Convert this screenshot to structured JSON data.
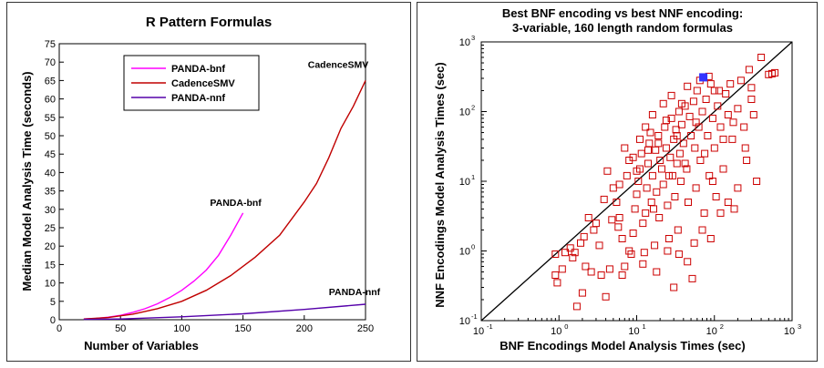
{
  "chart_data": [
    {
      "type": "line",
      "title": "R Pattern Formulas",
      "xlabel": "Number of Variables",
      "ylabel": "Median Model Analysis Time (seconds)",
      "xlim": [
        0,
        250
      ],
      "ylim": [
        0,
        75
      ],
      "xticks": [
        0,
        50,
        100,
        150,
        200,
        250
      ],
      "yticks": [
        0,
        5,
        10,
        15,
        20,
        25,
        30,
        35,
        40,
        45,
        50,
        55,
        60,
        65,
        70,
        75
      ],
      "legend_position": "top-left",
      "series": [
        {
          "name": "PANDA-bnf",
          "color": "#ff00ff",
          "label": "PANDA-bnf",
          "x": [
            20,
            30,
            40,
            50,
            60,
            70,
            80,
            90,
            100,
            110,
            120,
            130,
            140,
            150
          ],
          "y": [
            0.2,
            0.35,
            0.7,
            1.2,
            2.0,
            3.0,
            4.3,
            6.0,
            8.0,
            10.5,
            13.5,
            17.5,
            23.0,
            29.0
          ]
        },
        {
          "name": "CadenceSMV",
          "color": "#c00000",
          "label": "CadenceSMV",
          "x": [
            20,
            40,
            60,
            80,
            100,
            120,
            140,
            160,
            180,
            200,
            210,
            220,
            230,
            240,
            250
          ],
          "y": [
            0.2,
            0.6,
            1.5,
            3.0,
            5.0,
            8.0,
            12.0,
            17.0,
            23.0,
            32.0,
            37.0,
            44.0,
            52.0,
            58.0,
            65.0
          ]
        },
        {
          "name": "PANDA-nnf",
          "color": "#5500aa",
          "label": "PANDA-nnf",
          "x": [
            20,
            50,
            100,
            150,
            200,
            250
          ],
          "y": [
            0.1,
            0.2,
            0.8,
            1.6,
            2.8,
            4.2
          ]
        }
      ]
    },
    {
      "type": "scatter",
      "title": "Best BNF encoding vs best NNF encoding:",
      "subtitle": "3-variable, 160 length random formulas",
      "xlabel": "BNF Encodings Model Analysis Times (sec)",
      "ylabel": "NNF Encodings Model Analysis Times (sec)",
      "scale": "log",
      "xlim": [
        0.1,
        1000
      ],
      "ylim": [
        0.1,
        1000
      ],
      "tick_labels": [
        "10",
        "10",
        "10",
        "10",
        "10"
      ],
      "tick_exponents": [
        "-1",
        "0",
        "1",
        "2",
        "3"
      ],
      "diagonal_line": true,
      "marker": "open-square",
      "marker_color": "#cc0000",
      "highlight_point": {
        "x": 72,
        "y": 310,
        "color": "#3333ff"
      },
      "points": [
        [
          0.9,
          0.9
        ],
        [
          0.9,
          0.45
        ],
        [
          0.95,
          0.35
        ],
        [
          1.5,
          0.8
        ],
        [
          1.7,
          0.16
        ],
        [
          2.0,
          0.25
        ],
        [
          1.2,
          0.95
        ],
        [
          1.4,
          1.1
        ],
        [
          2.2,
          0.6
        ],
        [
          2.6,
          0.5
        ],
        [
          3.0,
          2.5
        ],
        [
          3.3,
          1.2
        ],
        [
          3.5,
          0.45
        ],
        [
          4.0,
          0.22
        ],
        [
          4.5,
          0.55
        ],
        [
          2.8,
          2.0
        ],
        [
          2.1,
          1.6
        ],
        [
          1.6,
          0.95
        ],
        [
          5.0,
          8.0
        ],
        [
          4.2,
          14.0
        ],
        [
          5.5,
          5.0
        ],
        [
          6.0,
          3.0
        ],
        [
          6.5,
          1.5
        ],
        [
          7.0,
          0.6
        ],
        [
          5.8,
          2.2
        ],
        [
          7.5,
          12.0
        ],
        [
          8.0,
          20.0
        ],
        [
          8.5,
          0.9
        ],
        [
          9.0,
          1.8
        ],
        [
          9.5,
          4.0
        ],
        [
          10.0,
          6.5
        ],
        [
          10.5,
          10.0
        ],
        [
          11.0,
          15.0
        ],
        [
          11.5,
          25.0
        ],
        [
          12.0,
          2.5
        ],
        [
          12.5,
          0.95
        ],
        [
          13.0,
          3.5
        ],
        [
          13.5,
          8.0
        ],
        [
          14.0,
          18.0
        ],
        [
          14.5,
          35.0
        ],
        [
          15.0,
          50.0
        ],
        [
          15.5,
          5.0
        ],
        [
          16.0,
          12.0
        ],
        [
          17.0,
          1.2
        ],
        [
          17.5,
          28.0
        ],
        [
          18.0,
          7.0
        ],
        [
          19.0,
          45.0
        ],
        [
          19.5,
          3.0
        ],
        [
          20.0,
          20.0
        ],
        [
          21.0,
          15.0
        ],
        [
          22.0,
          9.0
        ],
        [
          23.0,
          60.0
        ],
        [
          24.0,
          30.0
        ],
        [
          25.0,
          4.5
        ],
        [
          26.0,
          1.5
        ],
        [
          27.0,
          22.0
        ],
        [
          28.0,
          80.0
        ],
        [
          29.0,
          12.0
        ],
        [
          30.0,
          40.0
        ],
        [
          31.0,
          6.0
        ],
        [
          32.0,
          55.0
        ],
        [
          33.0,
          18.0
        ],
        [
          34.0,
          2.0
        ],
        [
          35.0,
          100.0
        ],
        [
          36.0,
          25.0
        ],
        [
          37.0,
          10.0
        ],
        [
          38.0,
          65.0
        ],
        [
          40.0,
          35.0
        ],
        [
          42.0,
          120.0
        ],
        [
          44.0,
          15.0
        ],
        [
          46.0,
          5.0
        ],
        [
          48.0,
          85.0
        ],
        [
          50.0,
          45.0
        ],
        [
          52.0,
          0.4
        ],
        [
          54.0,
          140.0
        ],
        [
          56.0,
          30.0
        ],
        [
          58.0,
          8.0
        ],
        [
          60.0,
          200.0
        ],
        [
          63.0,
          60.0
        ],
        [
          66.0,
          20.0
        ],
        [
          70.0,
          100.0
        ],
        [
          74.0,
          3.5
        ],
        [
          78.0,
          150.0
        ],
        [
          82.0,
          45.0
        ],
        [
          86.0,
          12.0
        ],
        [
          90.0,
          250.0
        ],
        [
          95.0,
          80.0
        ],
        [
          100.0,
          30.0
        ],
        [
          105.0,
          6.0
        ],
        [
          110.0,
          120.0
        ],
        [
          115.0,
          200.0
        ],
        [
          120.0,
          60.0
        ],
        [
          130.0,
          15.0
        ],
        [
          140.0,
          180.0
        ],
        [
          150.0,
          90.0
        ],
        [
          160.0,
          250.0
        ],
        [
          170.0,
          40.0
        ],
        [
          180.0,
          4.0
        ],
        [
          200.0,
          110.0
        ],
        [
          220.0,
          280.0
        ],
        [
          240.0,
          60.0
        ],
        [
          260.0,
          20.0
        ],
        [
          300.0,
          150.0
        ],
        [
          350.0,
          10.0
        ],
        [
          400.0,
          600.0
        ],
        [
          500.0,
          340.0
        ],
        [
          550.0,
          350.0
        ],
        [
          600.0,
          360.0
        ],
        [
          30.0,
          0.3
        ],
        [
          45.0,
          0.7
        ],
        [
          18.0,
          0.5
        ],
        [
          12.0,
          0.65
        ],
        [
          8.0,
          1.0
        ],
        [
          6.5,
          0.45
        ],
        [
          25.0,
          1.0
        ],
        [
          35.0,
          0.9
        ],
        [
          55.0,
          1.3
        ],
        [
          70.0,
          2.0
        ],
        [
          90.0,
          1.5
        ],
        [
          120.0,
          3.5
        ],
        [
          150.0,
          5.0
        ],
        [
          200.0,
          8.0
        ],
        [
          11.0,
          40.0
        ],
        [
          13.0,
          60.0
        ],
        [
          16.0,
          90.0
        ],
        [
          22.0,
          130.0
        ],
        [
          28.0,
          170.0
        ],
        [
          9.0,
          22.0
        ],
        [
          7.0,
          30.0
        ],
        [
          6.0,
          9.0
        ],
        [
          4.8,
          2.8
        ],
        [
          3.8,
          5.5
        ],
        [
          2.4,
          3.0
        ],
        [
          1.9,
          1.3
        ],
        [
          1.1,
          0.55
        ],
        [
          65.0,
          280.0
        ],
        [
          85.0,
          320.0
        ],
        [
          100.0,
          200.0
        ],
        [
          45.0,
          230.0
        ],
        [
          38.0,
          130.0
        ],
        [
          24.0,
          75.0
        ],
        [
          19.0,
          35.0
        ],
        [
          14.0,
          28.0
        ],
        [
          10.0,
          14.0
        ],
        [
          16.5,
          4.0
        ],
        [
          26.0,
          12.0
        ],
        [
          33.0,
          45.0
        ],
        [
          42.0,
          18.0
        ],
        [
          58.0,
          70.0
        ],
        [
          75.0,
          25.0
        ],
        [
          95.0,
          10.0
        ],
        [
          130.0,
          40.0
        ],
        [
          175.0,
          70.0
        ],
        [
          250.0,
          30.0
        ],
        [
          300.0,
          220.0
        ],
        [
          280.0,
          400.0
        ],
        [
          320.0,
          90.0
        ]
      ]
    }
  ]
}
